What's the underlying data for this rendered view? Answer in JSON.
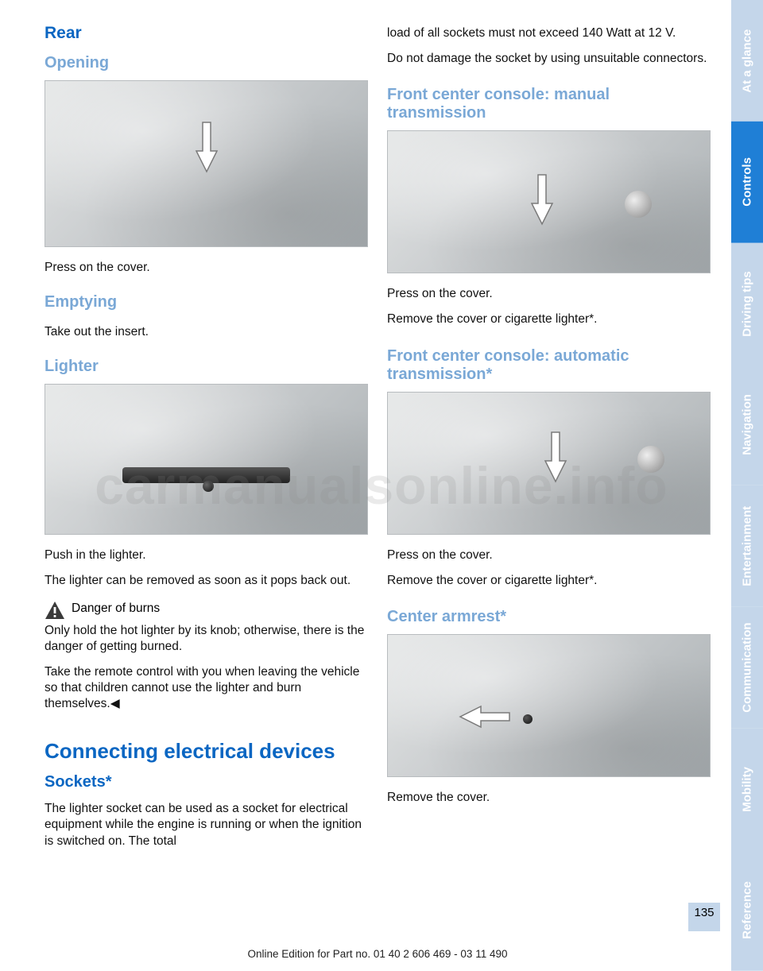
{
  "colors": {
    "heading_main": "#0a66c2",
    "heading_light": "#7aa8d6",
    "tab_active_bg": "#1f7fd6",
    "tab_inactive_bg": "#c4d6ea",
    "tab_active_text": "#ffffff",
    "tab_inactive_text": "#ffffff",
    "page_bg": "#ffffff",
    "body_text": "#111111",
    "image_bg_light": "#e4e6e6",
    "image_bg_dark": "#a9afb2",
    "warn_fill": "#3a3a3a",
    "arrow_fill": "#ffffff",
    "arrow_stroke": "#7a7a7a",
    "watermark_color": "rgba(140,140,140,0.18)"
  },
  "typography": {
    "body_font": "Arial, Helvetica, sans-serif",
    "body_size_pt": 12,
    "h_main_size_pt": 20,
    "h_section_size_pt": 16,
    "h_sub_size_pt": 15,
    "footer_size_pt": 10
  },
  "left": {
    "rear_title": "Rear",
    "opening_title": "Opening",
    "opening_caption": "Press on the cover.",
    "emptying_title": "Emptying",
    "emptying_text": "Take out the insert.",
    "lighter_title": "Lighter",
    "lighter_p1": "Push in the lighter.",
    "lighter_p2": "The lighter can be removed as soon as it pops back out.",
    "warn_title": "Danger of burns",
    "warn_p1": "Only hold the hot lighter by its knob; otherwise, there is the danger of getting burned.",
    "warn_p2": "Take the remote control with you when leaving the vehicle so that children cannot use the lighter and burn themselves.◀",
    "connect_title": "Connecting electrical devices",
    "sockets_title": "Sockets*",
    "sockets_text": "The lighter socket can be used as a socket for electrical equipment while the engine is running or when the ignition is switched on. The total"
  },
  "right": {
    "cont_p1": "load of all sockets must not exceed 140 Watt at 12 V.",
    "cont_p2": "Do not damage the socket by using unsuitable connectors.",
    "front_manual_title": "Front center console: manual transmission",
    "front_manual_c1": "Press on the cover.",
    "front_manual_c2": "Remove the cover or cigarette lighter*.",
    "front_auto_title": "Front center console: automatic transmission*",
    "front_auto_c1": "Press on the cover.",
    "front_auto_c2": "Remove the cover or cigarette lighter*.",
    "armrest_title": "Center armrest*",
    "armrest_caption": "Remove the cover."
  },
  "tabs": [
    {
      "label": "At a glance",
      "active": false
    },
    {
      "label": "Controls",
      "active": true
    },
    {
      "label": "Driving tips",
      "active": false
    },
    {
      "label": "Navigation",
      "active": false
    },
    {
      "label": "Entertainment",
      "active": false
    },
    {
      "label": "Communication",
      "active": false
    },
    {
      "label": "Mobility",
      "active": false
    },
    {
      "label": "Reference",
      "active": false
    }
  ],
  "page_number": "135",
  "footer_text": "Online Edition for Part no. 01 40 2 606 469 - 03 11 490",
  "watermark": "carmanualsonline.info"
}
